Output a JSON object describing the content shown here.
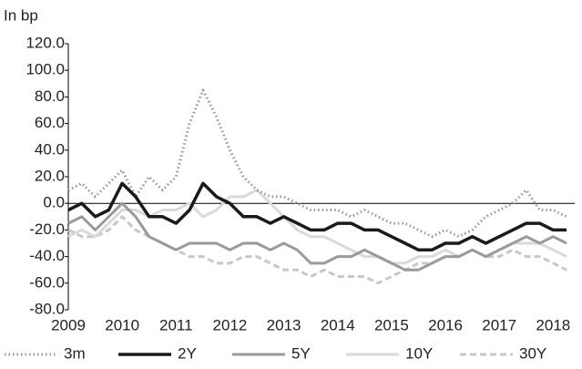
{
  "chart_data": {
    "type": "line",
    "y_axis_label": "In bp",
    "x": [
      2009,
      2009.25,
      2009.5,
      2009.75,
      2010,
      2010.25,
      2010.5,
      2010.75,
      2011,
      2011.25,
      2011.5,
      2011.75,
      2012,
      2012.25,
      2012.5,
      2012.75,
      2013,
      2013.25,
      2013.5,
      2013.75,
      2014,
      2014.25,
      2014.5,
      2014.75,
      2015,
      2015.25,
      2015.5,
      2015.75,
      2016,
      2016.25,
      2016.5,
      2016.75,
      2017,
      2017.25,
      2017.5,
      2017.75,
      2018,
      2018.25
    ],
    "xlim": [
      2009,
      2018.4
    ],
    "xticks": [
      2009,
      2010,
      2011,
      2012,
      2013,
      2014,
      2015,
      2016,
      2017,
      2018
    ],
    "ylim": [
      -80,
      120
    ],
    "yticks": [
      {
        "value": -80,
        "label": "-80.0"
      },
      {
        "value": -60,
        "label": "-60.0"
      },
      {
        "value": -40,
        "label": "-40.0"
      },
      {
        "value": -20,
        "label": "-20.0"
      },
      {
        "value": 0,
        "label": "0.0"
      },
      {
        "value": 20,
        "label": "20.0"
      },
      {
        "value": 40,
        "label": "40.0"
      },
      {
        "value": 60,
        "label": "60.0"
      },
      {
        "value": 80,
        "label": "80.0"
      },
      {
        "value": 100,
        "label": "100.0"
      },
      {
        "value": 120,
        "label": "120.0"
      }
    ],
    "series": [
      {
        "name": "3m",
        "color": "#999999",
        "style": "dotted",
        "values": [
          10,
          15,
          5,
          15,
          25,
          5,
          20,
          10,
          20,
          60,
          85,
          65,
          40,
          20,
          10,
          5,
          5,
          0,
          -5,
          -5,
          -5,
          -10,
          -5,
          -10,
          -15,
          -15,
          -20,
          -25,
          -20,
          -25,
          -20,
          -10,
          -5,
          0,
          10,
          -5,
          -5,
          -10
        ]
      },
      {
        "name": "2Y",
        "color": "#1a1a1a",
        "style": "solid",
        "values": [
          -5,
          0,
          -10,
          -5,
          15,
          5,
          -10,
          -10,
          -15,
          -5,
          15,
          5,
          0,
          -10,
          -10,
          -15,
          -10,
          -15,
          -20,
          -20,
          -15,
          -15,
          -20,
          -20,
          -25,
          -30,
          -35,
          -35,
          -30,
          -30,
          -25,
          -30,
          -25,
          -20,
          -15,
          -15,
          -20,
          -20
        ]
      },
      {
        "name": "5Y",
        "color": "#9a9a9a",
        "style": "solid",
        "values": [
          -15,
          -10,
          -20,
          -10,
          0,
          -10,
          -25,
          -30,
          -35,
          -30,
          -30,
          -30,
          -35,
          -30,
          -30,
          -35,
          -30,
          -35,
          -45,
          -45,
          -40,
          -40,
          -35,
          -40,
          -45,
          -50,
          -50,
          -45,
          -40,
          -40,
          -35,
          -40,
          -35,
          -30,
          -25,
          -30,
          -25,
          -30
        ]
      },
      {
        "name": "10Y",
        "color": "#dadada",
        "style": "solid",
        "values": [
          -25,
          -20,
          -25,
          -15,
          -5,
          -5,
          -10,
          -5,
          -5,
          0,
          -10,
          -5,
          5,
          5,
          10,
          0,
          -10,
          -20,
          -25,
          -25,
          -30,
          -35,
          -40,
          -40,
          -45,
          -45,
          -40,
          -40,
          -35,
          -40,
          -35,
          -40,
          -35,
          -30,
          -30,
          -30,
          -35,
          -40
        ]
      },
      {
        "name": "30Y",
        "color": "#c8c8c8",
        "style": "dashed",
        "values": [
          -20,
          -25,
          -25,
          -20,
          -10,
          -20,
          -25,
          -30,
          -35,
          -40,
          -40,
          -45,
          -45,
          -40,
          -40,
          -45,
          -50,
          -50,
          -55,
          -50,
          -55,
          -55,
          -55,
          -60,
          -55,
          -50,
          -45,
          -45,
          -40,
          -40,
          -35,
          -40,
          -40,
          -35,
          -40,
          -40,
          -45,
          -50
        ]
      }
    ]
  }
}
